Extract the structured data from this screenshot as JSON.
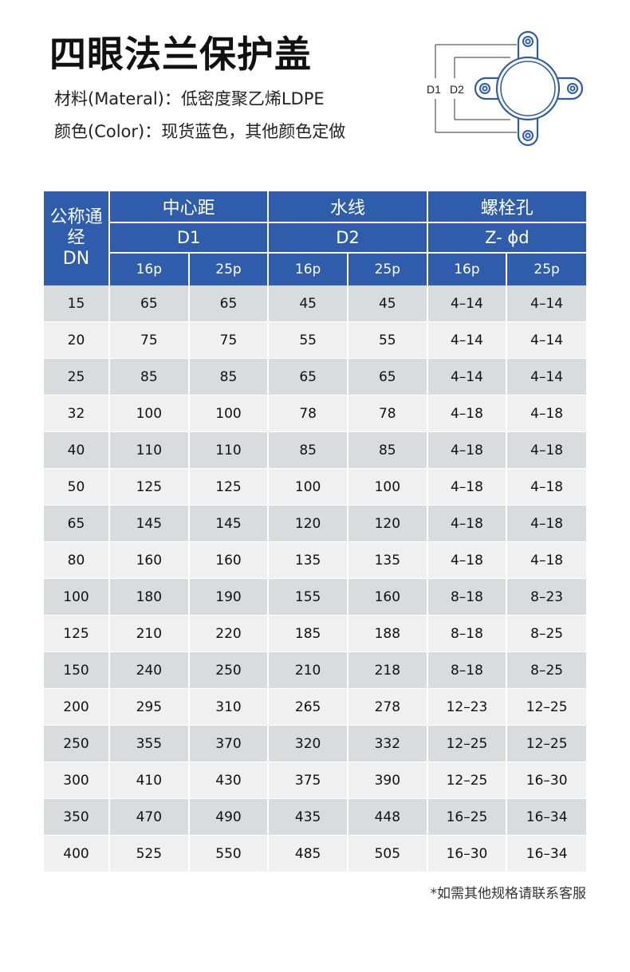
{
  "title": "四眼法兰保护盖",
  "material": "材料(Materal)：低密度聚乙烯LDPE",
  "color": "颜色(Color)：现货蓝色，其他颜色定做",
  "diagram": {
    "label_d1": "D1",
    "label_d2": "D2",
    "stroke": "#2f5dab"
  },
  "table": {
    "header_color": "#2f5dab",
    "dn_header_line1": "公称通经",
    "dn_header_line2": "DN",
    "groups": [
      {
        "name": "中心距",
        "sub": "D1"
      },
      {
        "name": "水线",
        "sub": "D2"
      },
      {
        "name": "螺栓孔",
        "sub": "Z- ɸd"
      }
    ],
    "pressure": [
      "16p",
      "25p",
      "16p",
      "25p",
      "16p",
      "25p"
    ],
    "rows": [
      [
        "15",
        "65",
        "65",
        "45",
        "45",
        "4–14",
        "4–14"
      ],
      [
        "20",
        "75",
        "75",
        "55",
        "55",
        "4–14",
        "4–14"
      ],
      [
        "25",
        "85",
        "85",
        "65",
        "65",
        "4–14",
        "4–14"
      ],
      [
        "32",
        "100",
        "100",
        "78",
        "78",
        "4–18",
        "4–18"
      ],
      [
        "40",
        "110",
        "110",
        "85",
        "85",
        "4–18",
        "4–18"
      ],
      [
        "50",
        "125",
        "125",
        "100",
        "100",
        "4–18",
        "4–18"
      ],
      [
        "65",
        "145",
        "145",
        "120",
        "120",
        "4–18",
        "4–18"
      ],
      [
        "80",
        "160",
        "160",
        "135",
        "135",
        "4–18",
        "4–18"
      ],
      [
        "100",
        "180",
        "190",
        "155",
        "160",
        "8–18",
        "8–23"
      ],
      [
        "125",
        "210",
        "220",
        "185",
        "188",
        "8–18",
        "8–25"
      ],
      [
        "150",
        "240",
        "250",
        "210",
        "218",
        "8–18",
        "8–25"
      ],
      [
        "200",
        "295",
        "310",
        "265",
        "278",
        "12–23",
        "12–25"
      ],
      [
        "250",
        "355",
        "370",
        "320",
        "332",
        "12–25",
        "12–25"
      ],
      [
        "300",
        "410",
        "430",
        "375",
        "390",
        "12–25",
        "16–30"
      ],
      [
        "350",
        "470",
        "490",
        "435",
        "448",
        "16–25",
        "16–34"
      ],
      [
        "400",
        "525",
        "550",
        "485",
        "505",
        "16–30",
        "16–34"
      ]
    ]
  },
  "note": "*如需其他规格请联系客服"
}
